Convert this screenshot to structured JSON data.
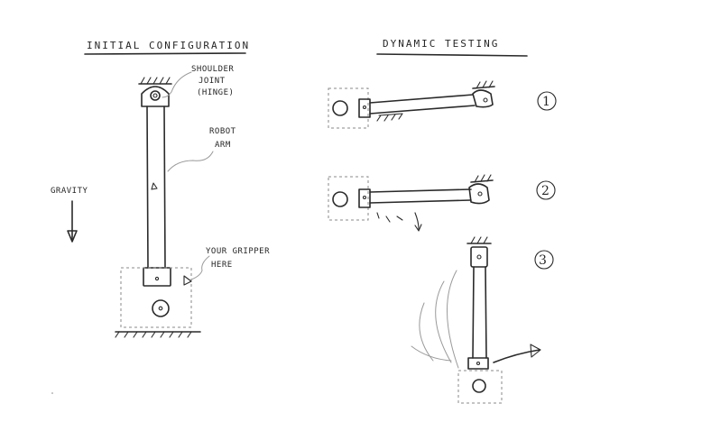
{
  "left_panel": {
    "title": "INITIAL CONFIGURATION",
    "shoulder_label": [
      "SHOULDER",
      "JOINT",
      "(HINGE)"
    ],
    "arm_label": [
      "ROBOT",
      "ARM"
    ],
    "gravity_label": "GRAVITY",
    "gripper_label": [
      "YOUR GRIPPER",
      "HERE"
    ]
  },
  "right_panel": {
    "title": "DYNAMIC TESTING",
    "steps": [
      "1",
      "2",
      "3"
    ]
  }
}
